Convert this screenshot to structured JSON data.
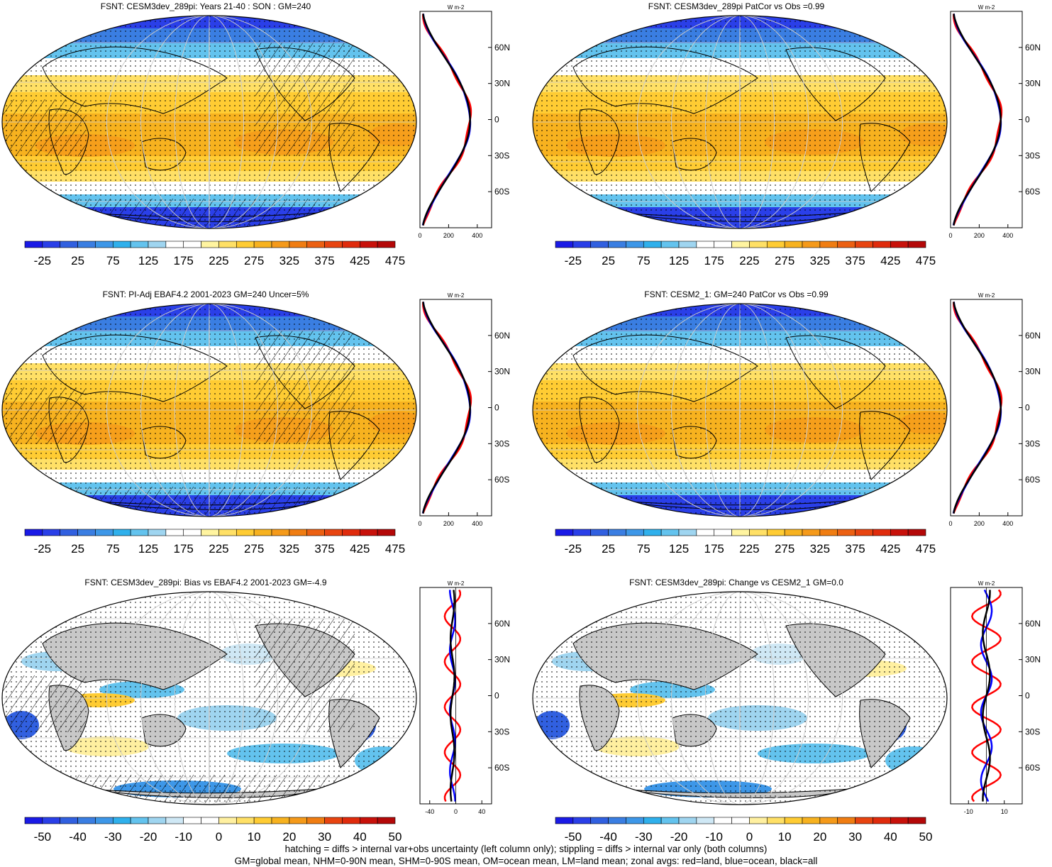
{
  "footer": {
    "line1": "hatching = diffs > internal var+obs uncertainty (left column only); stippling = diffs > internal var only (both columns)",
    "line2": "GM=global mean, NHM=0-90N mean, SHM=0-90S mean, OM=ocean mean, LM=land mean; zonal avgs: red=land, blue=ocean, black=all"
  },
  "colors": {
    "land": "#ff0000",
    "ocean": "#0000ff",
    "all": "#000000",
    "map_land": "#c8c8c8"
  },
  "chart_data": [
    {
      "type": "heatmap",
      "title": "FSNT: CESM3dev_289pi: Years 21-40 : SON : GM=240",
      "colorbar": {
        "labels": [
          "-25",
          "25",
          "75",
          "125",
          "175",
          "225",
          "275",
          "325",
          "375",
          "425",
          "475"
        ],
        "range": [
          -50,
          500
        ]
      },
      "zonal": {
        "unit": "W m-2",
        "xticks": [
          "0",
          "200",
          "400"
        ],
        "xlim": [
          0,
          500
        ],
        "yticks": [
          "60N",
          "30N",
          "0",
          "30S",
          "60S"
        ],
        "ylim": [
          -90,
          90
        ]
      }
    },
    {
      "type": "heatmap",
      "title": "FSNT: CESM3dev_289pi PatCor vs Obs =0.99",
      "colorbar": {
        "labels": [
          "-25",
          "25",
          "75",
          "125",
          "175",
          "225",
          "275",
          "325",
          "375",
          "425",
          "475"
        ],
        "range": [
          -50,
          500
        ]
      },
      "zonal": {
        "unit": "W m-2",
        "xticks": [
          "0",
          "200",
          "400"
        ],
        "xlim": [
          0,
          500
        ],
        "yticks": [
          "60N",
          "30N",
          "0",
          "30S",
          "60S"
        ],
        "ylim": [
          -90,
          90
        ]
      }
    },
    {
      "type": "heatmap",
      "title": "FSNT: PI-Adj EBAF4.2 2001-2023 GM=240 Uncer=5%",
      "colorbar": {
        "labels": [
          "-25",
          "25",
          "75",
          "125",
          "175",
          "225",
          "275",
          "325",
          "375",
          "425",
          "475"
        ],
        "range": [
          -50,
          500
        ]
      },
      "zonal": {
        "unit": "W m-2",
        "xticks": [
          "0",
          "200",
          "400"
        ],
        "xlim": [
          0,
          500
        ],
        "yticks": [
          "60N",
          "30N",
          "0",
          "30S",
          "60S"
        ],
        "ylim": [
          -90,
          90
        ]
      }
    },
    {
      "type": "heatmap",
      "title": "FSNT: CESM2_1: GM=240 PatCor vs Obs =0.99",
      "colorbar": {
        "labels": [
          "-25",
          "25",
          "75",
          "125",
          "175",
          "225",
          "275",
          "325",
          "375",
          "425",
          "475"
        ],
        "range": [
          -50,
          500
        ]
      },
      "zonal": {
        "unit": "W m-2",
        "xticks": [
          "0",
          "200",
          "400"
        ],
        "xlim": [
          0,
          500
        ],
        "yticks": [
          "60N",
          "30N",
          "0",
          "30S",
          "60S"
        ],
        "ylim": [
          -90,
          90
        ]
      }
    },
    {
      "type": "heatmap",
      "title": "FSNT: CESM3dev_289pi: Bias vs EBAF4.2 2001-2023  GM=-4.9",
      "colorbar": {
        "labels": [
          "-50",
          "-40",
          "-30",
          "-20",
          "-10",
          "0",
          "10",
          "20",
          "30",
          "40",
          "50"
        ],
        "range": [
          -55,
          55
        ]
      },
      "zonal": {
        "unit": "W m-2",
        "xticks": [
          "-40",
          "0",
          "40"
        ],
        "xlim": [
          -55,
          55
        ],
        "yticks": [
          "60N",
          "30N",
          "0",
          "30S",
          "60S"
        ],
        "ylim": [
          -90,
          90
        ]
      }
    },
    {
      "type": "heatmap",
      "title": "FSNT: CESM3dev_289pi: Change vs CESM2_1 GM=0.0",
      "colorbar": {
        "labels": [
          "-50",
          "-40",
          "-30",
          "-20",
          "-10",
          "0",
          "10",
          "20",
          "30",
          "40",
          "50"
        ],
        "range": [
          -55,
          55
        ]
      },
      "zonal": {
        "unit": "W m-2",
        "xticks": [
          "-10",
          "10"
        ],
        "xlim": [
          -20,
          20
        ],
        "yticks": [
          "60N",
          "30N",
          "0",
          "30S",
          "60S"
        ],
        "ylim": [
          -90,
          90
        ]
      }
    }
  ]
}
